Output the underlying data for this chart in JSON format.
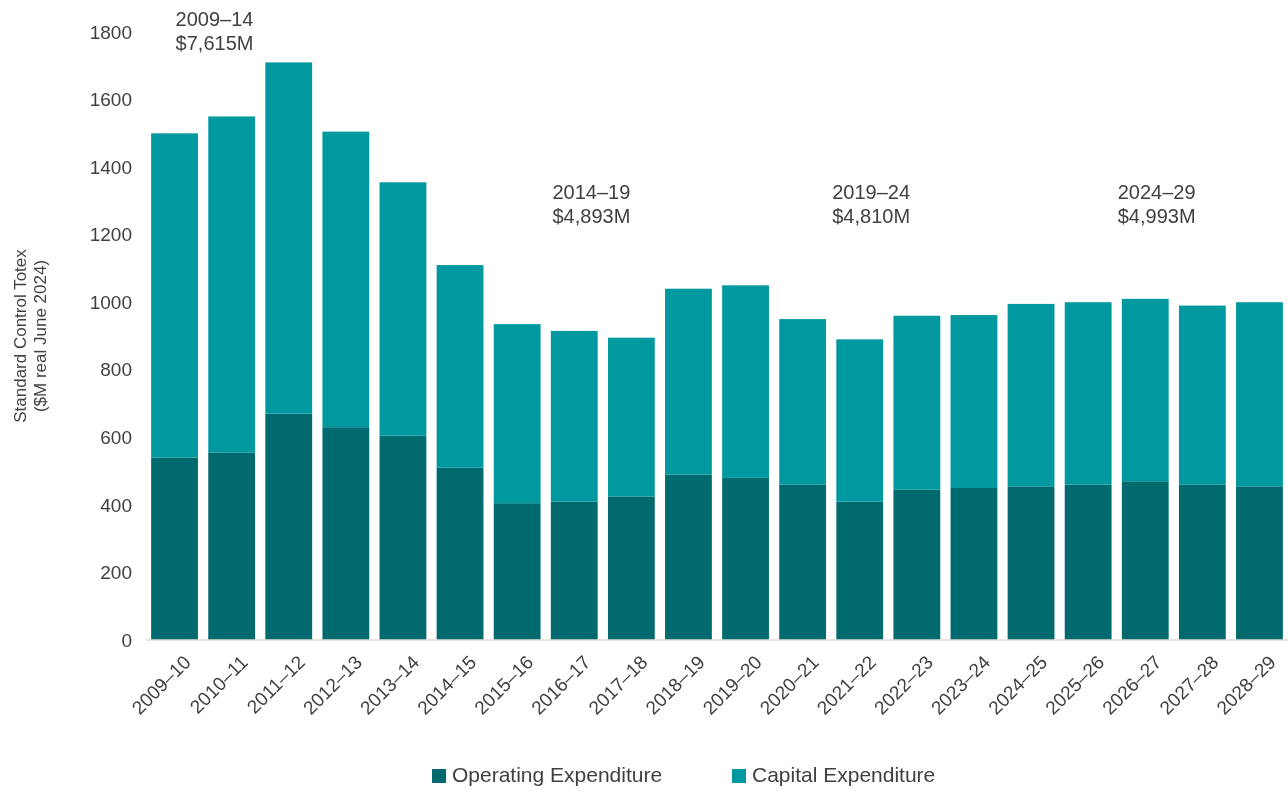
{
  "chart_data": {
    "type": "bar",
    "stacked": true,
    "ylabel": "Standard Control Totex\n($M real June 2024)",
    "categories": [
      "2009–10",
      "2010–11",
      "2011–12",
      "2012–13",
      "2013–14",
      "2014–15",
      "2015–16",
      "2016–17",
      "2017–18",
      "2018–19",
      "2019–20",
      "2020–21",
      "2021–22",
      "2022–23",
      "2023–24",
      "2024–25",
      "2025–26",
      "2026–27",
      "2027–28",
      "2028–29"
    ],
    "series": [
      {
        "name": "Operating Expenditure",
        "color": "#006a6e",
        "values": [
          540,
          555,
          670,
          630,
          605,
          510,
          405,
          410,
          425,
          490,
          480,
          460,
          410,
          445,
          450,
          455,
          460,
          470,
          460,
          455
        ]
      },
      {
        "name": "Capital Expenditure",
        "color": "#0099a0",
        "values": [
          960,
          995,
          1040,
          875,
          750,
          600,
          530,
          505,
          470,
          550,
          570,
          490,
          480,
          515,
          512,
          540,
          540,
          540,
          530,
          545
        ]
      }
    ],
    "ylim": [
      0,
      1800
    ],
    "yticks": [
      0,
      200,
      400,
      600,
      800,
      1000,
      1200,
      1400,
      1600,
      1800
    ],
    "grid": false,
    "legend": "bottom",
    "annotations": [
      "2009–14\n$7,615M",
      "2014–19\n$4,893M",
      "2019–24\n$4,810M",
      "2024–29\n$4,993M"
    ]
  }
}
